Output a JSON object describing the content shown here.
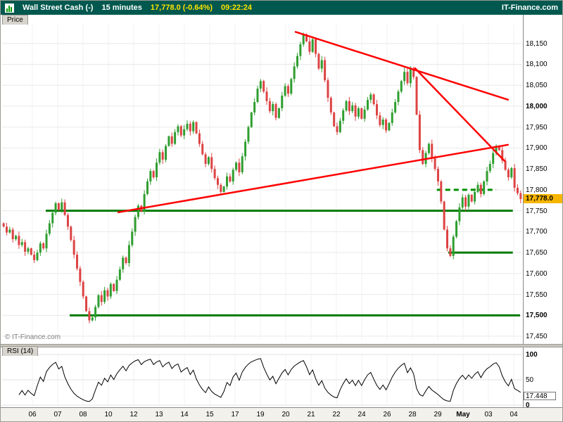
{
  "header": {
    "title": "Wall Street Cash (-)",
    "timeframe": "15 minutes",
    "quote": "17,778.0 (-0.64%)",
    "time": "09:22:24",
    "brand": "IT-Finance.com"
  },
  "tabs": {
    "price": "Price",
    "rsi": "RSI (14)"
  },
  "watermark": "© IT-Finance.com",
  "badges": {
    "price": "17,778.0",
    "rsi": "17.448"
  },
  "axis": {
    "price_labels": [
      {
        "t": "18,150",
        "v": 18150,
        "b": false
      },
      {
        "t": "18,100",
        "v": 18100,
        "b": false
      },
      {
        "t": "18,050",
        "v": 18050,
        "b": false
      },
      {
        "t": "18,000",
        "v": 18000,
        "b": true
      },
      {
        "t": "17,950",
        "v": 17950,
        "b": false
      },
      {
        "t": "17,900",
        "v": 17900,
        "b": false
      },
      {
        "t": "17,850",
        "v": 17850,
        "b": false
      },
      {
        "t": "17,800",
        "v": 17800,
        "b": false
      },
      {
        "t": "17,750",
        "v": 17750,
        "b": false
      },
      {
        "t": "17,700",
        "v": 17700,
        "b": false
      },
      {
        "t": "17,650",
        "v": 17650,
        "b": false
      },
      {
        "t": "17,600",
        "v": 17600,
        "b": false
      },
      {
        "t": "17,550",
        "v": 17550,
        "b": false
      },
      {
        "t": "17,500",
        "v": 17500,
        "b": true
      },
      {
        "t": "17,450",
        "v": 17450,
        "b": false
      }
    ],
    "x_labels": [
      {
        "t": "06",
        "b": false
      },
      {
        "t": "07",
        "b": false
      },
      {
        "t": "08",
        "b": false
      },
      {
        "t": "10",
        "b": false
      },
      {
        "t": "12",
        "b": false
      },
      {
        "t": "13",
        "b": false
      },
      {
        "t": "14",
        "b": false
      },
      {
        "t": "15",
        "b": false
      },
      {
        "t": "17",
        "b": false
      },
      {
        "t": "19",
        "b": false
      },
      {
        "t": "20",
        "b": false
      },
      {
        "t": "21",
        "b": false
      },
      {
        "t": "22",
        "b": false
      },
      {
        "t": "24",
        "b": false
      },
      {
        "t": "26",
        "b": false
      },
      {
        "t": "28",
        "b": false
      },
      {
        "t": "29",
        "b": false
      },
      {
        "t": "May",
        "b": true
      },
      {
        "t": "03",
        "b": false
      },
      {
        "t": "04",
        "b": false
      }
    ],
    "rsi_labels": [
      {
        "t": "100",
        "v": 100,
        "b": true
      },
      {
        "t": "50",
        "v": 50,
        "b": false
      },
      {
        "t": "0",
        "v": 0,
        "b": true
      }
    ]
  },
  "chart_data": {
    "type": "candlestick",
    "title": "Wall Street Cash (-) 15 minutes",
    "ylabel": "Price",
    "price_range": [
      17440,
      18195
    ],
    "gridline_step": 50,
    "grid": true,
    "current_price": 17778.0,
    "change_pct": -0.64,
    "first_open": 17720,
    "closes": [
      17712,
      17698,
      17705,
      17682,
      17690,
      17668,
      17675,
      17652,
      17660,
      17645,
      17632,
      17650,
      17672,
      17660,
      17695,
      17720,
      17745,
      17768,
      17752,
      17770,
      17740,
      17712,
      17680,
      17645,
      17612,
      17580,
      17545,
      17510,
      17488,
      17495,
      17520,
      17548,
      17532,
      17560,
      17545,
      17575,
      17558,
      17585,
      17610,
      17638,
      17625,
      17668,
      17700,
      17735,
      17762,
      17748,
      17790,
      17820,
      17845,
      17830,
      17865,
      17890,
      17872,
      17905,
      17928,
      17910,
      17938,
      17952,
      17930,
      17945,
      17958,
      17940,
      17962,
      17935,
      17910,
      17885,
      17862,
      17878,
      17850,
      17828,
      17812,
      17795,
      17808,
      17832,
      17820,
      17848,
      17865,
      17842,
      17880,
      17915,
      17950,
      17985,
      18010,
      18042,
      18060,
      18035,
      18012,
      17988,
      18005,
      17972,
      17995,
      18025,
      18048,
      18030,
      18065,
      18095,
      18120,
      18148,
      18172,
      18155,
      18130,
      18160,
      18125,
      18090,
      18110,
      18062,
      18020,
      17985,
      17952,
      17938,
      17965,
      17990,
      18012,
      17988,
      18002,
      17975,
      17995,
      17970,
      17992,
      18015,
      18028,
      18005,
      17978,
      17955,
      17968,
      17942,
      17960,
      17985,
      18010,
      18035,
      18060,
      18082,
      18055,
      18090,
      18070,
      17980,
      17895,
      17862,
      17888,
      17910,
      17875,
      17850,
      17820,
      17772,
      17705,
      17660,
      17642,
      17688,
      17725,
      17758,
      17782,
      17760,
      17788,
      17772,
      17795,
      17812,
      17790,
      17820,
      17845,
      17862,
      17888,
      17905,
      17895,
      17870,
      17848,
      17830,
      17852,
      17805,
      17792,
      17778
    ],
    "trendlines": [
      {
        "name": "descending-resistance",
        "color": "#ff0000",
        "w": 2.5,
        "x1f": 0.563,
        "p1": 18178,
        "x2f": 0.974,
        "p2": 18015
      },
      {
        "name": "steep-resistance",
        "color": "#ff0000",
        "w": 2.5,
        "x1f": 0.793,
        "p1": 18092,
        "x2f": 0.967,
        "p2": 17868
      },
      {
        "name": "ascending-support",
        "color": "#ff0000",
        "w": 2.5,
        "x1f": 0.222,
        "p1": 17746,
        "x2f": 0.974,
        "p2": 17908
      }
    ],
    "levels": [
      {
        "name": "support-17750",
        "price": 17750,
        "x1f": 0.084,
        "x2f": 0.982,
        "color": "#007a00",
        "w": 3,
        "dash": ""
      },
      {
        "name": "support-17650",
        "price": 17650,
        "x1f": 0.858,
        "x2f": 0.982,
        "color": "#007a00",
        "w": 3,
        "dash": ""
      },
      {
        "name": "support-17500",
        "price": 17500,
        "x1f": 0.13,
        "x2f": 0.996,
        "color": "#007a00",
        "w": 3,
        "dash": ""
      },
      {
        "name": "pivot-17800-dashed",
        "price": 17800,
        "x1f": 0.836,
        "x2f": 0.95,
        "color": "#009000",
        "w": 3,
        "dash": "7,5"
      }
    ],
    "indicator": {
      "name": "RSI",
      "period": 14,
      "last_value": 17.448,
      "range": [
        0,
        100
      ]
    },
    "colors": {
      "up": "#2f9e2f",
      "down": "#dd4343",
      "grid": "#e9e9e9",
      "vgrid": "#f0f0f0",
      "trend": "#ff0000",
      "level": "#007a00",
      "rsi_line": "#000000",
      "header_bg": "#00584e",
      "badge_bg": "#f7b500"
    }
  }
}
